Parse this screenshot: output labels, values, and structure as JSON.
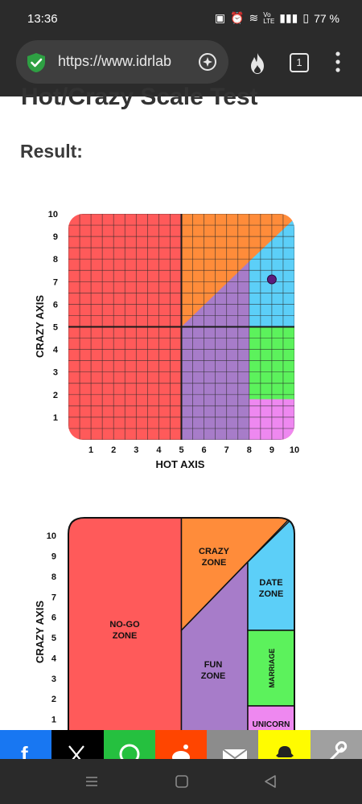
{
  "status": {
    "time": "13:36",
    "battery": "77 %",
    "network": "Vo LTE"
  },
  "browser": {
    "url": "https://www.idrlab",
    "tab_count": "1"
  },
  "page": {
    "title": "Hot/Crazy Scale Test",
    "result_label": "Result:"
  },
  "chart_data": [
    {
      "type": "scatter",
      "title": "",
      "xlabel": "HOT AXIS",
      "ylabel": "CRAZY AXIS",
      "xlim": [
        0,
        10
      ],
      "ylim": [
        0,
        10
      ],
      "x_ticks": [
        "1",
        "2",
        "3",
        "4",
        "5",
        "6",
        "7",
        "8",
        "9",
        "10"
      ],
      "y_ticks": [
        "1",
        "2",
        "3",
        "4",
        "5",
        "6",
        "7",
        "8",
        "9",
        "10"
      ],
      "grid": true,
      "points": [
        {
          "x": 9,
          "y": 7.1
        }
      ],
      "regions": [
        {
          "name": "no-go zone",
          "color": "#ff5a5a"
        },
        {
          "name": "crazy zone",
          "color": "#ff8c3a"
        },
        {
          "name": "fun zone",
          "color": "#a77cc9"
        },
        {
          "name": "date zone",
          "color": "#5ccff8"
        },
        {
          "name": "marriage",
          "color": "#5cf25c"
        },
        {
          "name": "unicorn",
          "color": "#ee88f0"
        }
      ]
    },
    {
      "type": "diagram",
      "ylabel": "CRAZY AXIS",
      "y_ticks": [
        "1",
        "2",
        "3",
        "4",
        "5",
        "6",
        "7",
        "8",
        "9",
        "10"
      ],
      "zones": {
        "nogo": [
          "NO-GO",
          "ZONE"
        ],
        "crazy": [
          "CRAZY",
          "ZONE"
        ],
        "fun": [
          "FUN",
          "ZONE"
        ],
        "date": [
          "DATE",
          "ZONE"
        ],
        "marriage": "MARRIAGE",
        "unicorn": "UNICORN"
      }
    }
  ],
  "share": [
    {
      "name": "facebook",
      "color": "#1877f2"
    },
    {
      "name": "x",
      "color": "#000000"
    },
    {
      "name": "whatsapp",
      "color": "#25c03f"
    },
    {
      "name": "reddit",
      "color": "#ff4500"
    },
    {
      "name": "email",
      "color": "#8c8c8c"
    },
    {
      "name": "snapchat",
      "color": "#fffc00"
    },
    {
      "name": "copy-link",
      "color": "#a0a0a0"
    }
  ]
}
